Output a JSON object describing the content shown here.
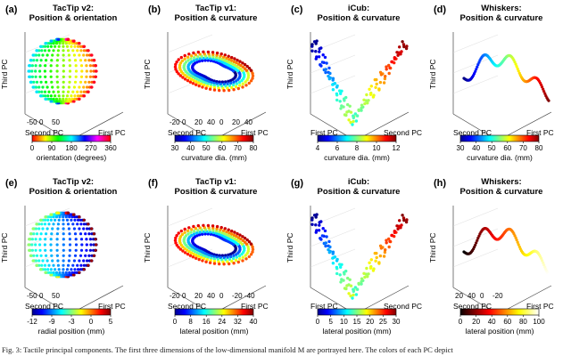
{
  "chart_data": [
    {
      "id": "a",
      "letter": "(a)",
      "type": "scatter",
      "title_lines": [
        "TacTip v2:",
        "Position & orientation"
      ],
      "axis_labels": [
        "Third PC",
        "Second PC",
        "First PC"
      ],
      "tick_labels": [
        "-50",
        "0",
        "50"
      ],
      "colorbar": {
        "ticks": [
          "0",
          "90",
          "180",
          "270",
          "360"
        ],
        "label": "orientation (degrees)",
        "colormap": "hsv",
        "range": [
          0,
          360
        ]
      },
      "shape": "sphere"
    },
    {
      "id": "b",
      "letter": "(b)",
      "type": "scatter",
      "title_lines": [
        "TacTip v1:",
        "Position & curvature"
      ],
      "axis_labels": [
        "Third PC",
        "Second PC",
        "First PC"
      ],
      "tick_labels": [
        "-20",
        "0",
        "20",
        "40",
        "0",
        "20",
        "40"
      ],
      "colorbar": {
        "ticks": [
          "30",
          "40",
          "50",
          "60",
          "70",
          "80"
        ],
        "label": "curvature dia. (mm)",
        "colormap": "jet",
        "range": [
          30,
          80
        ]
      },
      "shape": "spiral"
    },
    {
      "id": "c",
      "letter": "(c)",
      "type": "scatter",
      "title_lines": [
        "iCub:",
        "Position & curvature"
      ],
      "axis_labels": [
        "Third PC",
        "First PC",
        "Second PC"
      ],
      "tick_labels": [],
      "colorbar": {
        "ticks": [
          "4",
          "6",
          "8",
          "10",
          "12"
        ],
        "label": "curvature dia. (mm)",
        "colormap": "jet",
        "range": [
          4,
          12
        ]
      },
      "shape": "vshape"
    },
    {
      "id": "d",
      "letter": "(d)",
      "type": "scatter",
      "title_lines": [
        "Whiskers:",
        "Position & curvature"
      ],
      "axis_labels": [
        "Third PC",
        "Second PC",
        "First PC"
      ],
      "tick_labels": [],
      "colorbar": {
        "ticks": [
          "30",
          "40",
          "50",
          "60",
          "70",
          "80"
        ],
        "label": "curvature dia. (mm)",
        "colormap": "jet",
        "range": [
          30,
          80
        ]
      },
      "shape": "track"
    },
    {
      "id": "e",
      "letter": "(e)",
      "type": "scatter",
      "title_lines": [
        "TacTip v2:",
        "Position & orientation"
      ],
      "axis_labels": [
        "Third PC",
        "Second PC",
        "First PC"
      ],
      "tick_labels": [
        "-50",
        "0",
        "50"
      ],
      "colorbar": {
        "ticks": [
          "-12",
          "-9",
          "-3",
          "0",
          "5"
        ],
        "label": "radial position (mm)",
        "colormap": "jet",
        "range": [
          -12,
          5
        ]
      },
      "shape": "sphere"
    },
    {
      "id": "f",
      "letter": "(f)",
      "type": "scatter",
      "title_lines": [
        "TacTip v1:",
        "Position & curvature"
      ],
      "axis_labels": [
        "Third PC",
        "Second PC",
        "First PC"
      ],
      "tick_labels": [
        "-20",
        "0",
        "20",
        "40",
        "0",
        "-20",
        "-40"
      ],
      "colorbar": {
        "ticks": [
          "0",
          "8",
          "16",
          "24",
          "32",
          "40"
        ],
        "label": "lateral position (mm)",
        "colormap": "jet",
        "range": [
          0,
          40
        ]
      },
      "shape": "spiral"
    },
    {
      "id": "g",
      "letter": "(g)",
      "type": "scatter",
      "title_lines": [
        "iCub:",
        "Position & curvature"
      ],
      "axis_labels": [
        "Third PC",
        "First PC",
        "Second PC"
      ],
      "tick_labels": [],
      "colorbar": {
        "ticks": [
          "0",
          "5",
          "10",
          "15",
          "20",
          "25",
          "30"
        ],
        "label": "lateral position (mm)",
        "colormap": "jet",
        "range": [
          0,
          30
        ]
      },
      "shape": "vshape"
    },
    {
      "id": "h",
      "letter": "(h)",
      "type": "scatter",
      "title_lines": [
        "Whiskers:",
        "Position & curvature"
      ],
      "axis_labels": [
        "Third PC",
        "Second PC",
        "First PC"
      ],
      "tick_labels": [
        "20",
        "40",
        "0",
        "-20"
      ],
      "colorbar": {
        "ticks": [
          "0",
          "20",
          "40",
          "60",
          "80",
          "100"
        ],
        "label": "lateral position (mm)",
        "colormap": "hot",
        "range": [
          0,
          100
        ]
      },
      "shape": "track"
    }
  ],
  "caption": "Fig. 3: Tactile principal components. The first three dimensions of the low-dimensional manifold M are portrayed here. The colors of each PC depict"
}
